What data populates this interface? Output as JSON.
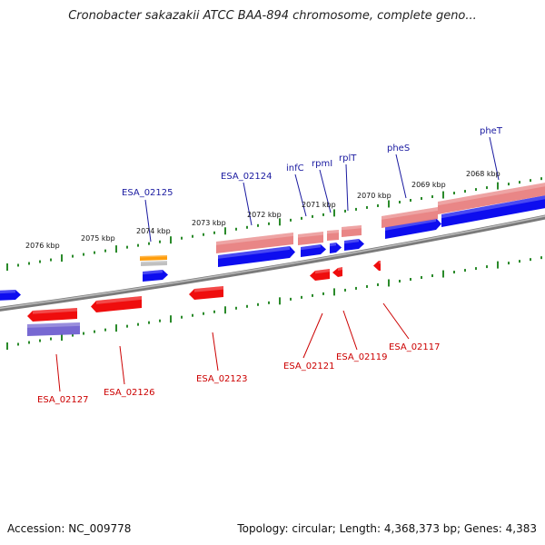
{
  "title": "Cronobacter sakazakii ATCC BAA-894 chromosome, complete geno...",
  "footer": {
    "accession": "Accession: NC_009778",
    "topology": "Topology: circular; Length: 4,368,373 bp; Genes: 4,383"
  },
  "colors": {
    "backbone": "#7a7a7a",
    "tick": "#2a8a2a",
    "gene_forward": "#0000ee",
    "gene_reverse": "#ee0000",
    "label_forward": "#1a1aa0",
    "label_reverse": "#cc0000",
    "rna_pink": "#e88080",
    "orange": "#ff9900",
    "purple": "#7060d0"
  },
  "scale_labels": [
    "2076 kbp",
    "2075 kbp",
    "2074 kbp",
    "2073 kbp",
    "2072 kbp",
    "2071 kbp",
    "2070 kbp",
    "2069 kbp",
    "2068 kbp"
  ],
  "forward_gene_labels": [
    "ESA_02125",
    "ESA_02124",
    "infC",
    "rpmI",
    "rplT",
    "pheS",
    "pheT"
  ],
  "reverse_gene_labels": [
    "ESA_02127",
    "ESA_02126",
    "ESA_02123",
    "ESA_02121",
    "ESA_02119",
    "ESA_02117"
  ]
}
